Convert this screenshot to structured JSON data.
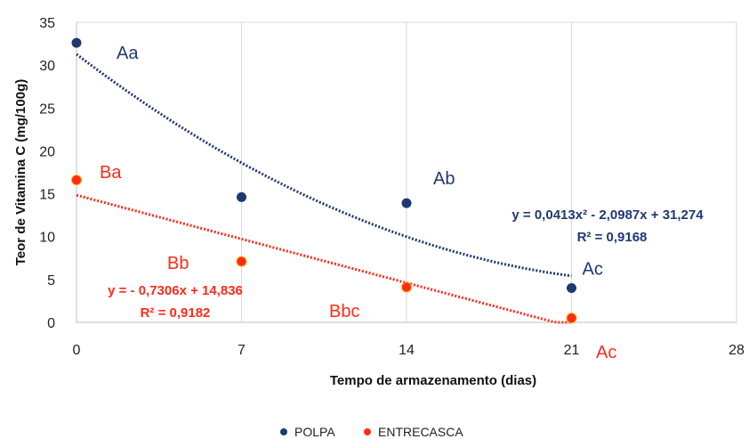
{
  "chart_data": {
    "type": "scatter",
    "xlabel": "Tempo de armazenamento (dias)",
    "ylabel": "Teor de Vitamina C (mg/100g)",
    "xlim": [
      0,
      28
    ],
    "ylim": [
      0,
      35
    ],
    "xticks": [
      0,
      7,
      14,
      21,
      28
    ],
    "yticks": [
      0,
      5,
      10,
      15,
      20,
      25,
      30,
      35
    ],
    "grid": "vertical",
    "legend_position": "bottom",
    "series": [
      {
        "name": "POLPA",
        "color": "#1f3872",
        "x": [
          0,
          7,
          14,
          21
        ],
        "y": [
          32.6,
          14.6,
          13.9,
          4.0
        ],
        "labels": [
          "Aa",
          "",
          "Ab",
          "Ac"
        ],
        "trendline": {
          "type": "polynomial",
          "a": 0.0413,
          "b": -2.0987,
          "c": 31.274,
          "x_range": [
            0,
            21
          ]
        },
        "equation": "y = 0,0413x² - 2,0987x + 31,274",
        "r2": "R² = 0,9168"
      },
      {
        "name": "ENTRECASCA",
        "color": "#ff2a1a",
        "x": [
          0,
          7,
          14,
          21
        ],
        "y": [
          16.6,
          7.1,
          4.1,
          0.5
        ],
        "labels": [
          "Ba",
          "Bb",
          "Bbc",
          "Ac"
        ],
        "trendline": {
          "type": "linear",
          "m": -0.7306,
          "b": 14.836,
          "x_range": [
            0,
            21
          ]
        },
        "equation": "y = - 0,7306x + 14,836",
        "r2": "R² = 0,9182"
      }
    ]
  }
}
